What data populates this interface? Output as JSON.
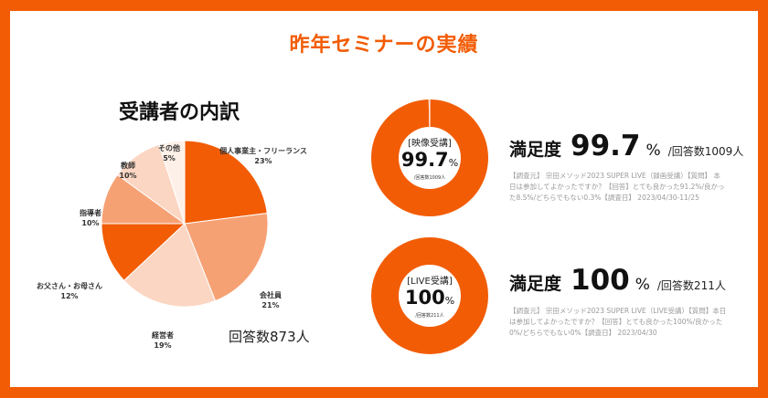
{
  "page_title": "昨年セミナーの実績",
  "pie_title": "受講者の内訳",
  "pie_total": "回答数873人",
  "colors": {
    "accent": "#f25c05",
    "light": "#fbe3d5"
  },
  "chart_data": [
    {
      "type": "pie",
      "title": "受講者の内訳",
      "categories": [
        "個人事業主・フリーランス",
        "会社員",
        "経営者",
        "お父さん・お母さん",
        "指導者",
        "教師",
        "その他"
      ],
      "values": [
        23,
        21,
        19,
        12,
        10,
        10,
        5
      ],
      "unit": "%",
      "value_labels": [
        "23%",
        "21%",
        "19%",
        "12%",
        "10%",
        "10%",
        "5%"
      ],
      "colors": [
        "#f25c05",
        "#f6a174",
        "#fbd6c2",
        "#f25c05",
        "#f6a174",
        "#fbd6c2",
        "#fdf0e8"
      ],
      "annotation": "回答数873人"
    },
    {
      "type": "pie",
      "title": "[映像受講]",
      "center_value": "99.7",
      "center_unit": "%",
      "center_count": "/回答数1009人",
      "values": [
        99.7,
        0.3
      ],
      "colors": [
        "#f25c05",
        "#ffffff"
      ]
    },
    {
      "type": "pie",
      "title": "[LIVE受講]",
      "center_value": "100",
      "center_unit": "%",
      "center_count": "/回答数211人",
      "values": [
        100
      ],
      "colors": [
        "#f25c05"
      ]
    }
  ],
  "stats": [
    {
      "key": "満足度",
      "value": "99.7",
      "unit": "%",
      "count": "/回答数1009人",
      "note": "【調査元】 宗田メソッド2023 SUPER LIVE（録画受講）【質問】 本日は参加してよかったですか？【回答】とても良かった91.2%/良かった8.5%/どちらでもない0.3%【調査日】 2023/04/30-11/25"
    },
    {
      "key": "満足度",
      "value": "100",
      "unit": "%",
      "count": "/回答数211人",
      "note": "【調査元】 宗田メソッド2023 SUPER LIVE（LIVE受講）【質問】本日は参加してよかったですか？【回答】とても良かった100%/良かった0%/どちらでもない0%【調査日】 2023/04/30"
    }
  ]
}
